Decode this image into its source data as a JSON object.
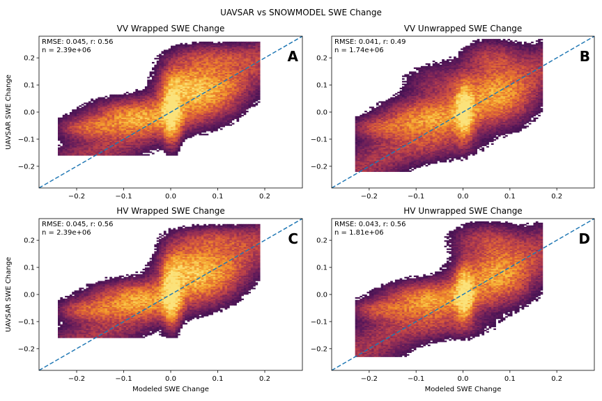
{
  "suptitle": "UAVSAR vs SNOWMODEL SWE Change",
  "colors": {
    "one_to_one_line": "#1f77b4",
    "colormap": [
      "#1a0a2e",
      "#3b0f4f",
      "#5f1a5a",
      "#8a2a56",
      "#b53d4b",
      "#d85b3a",
      "#ef8a2a",
      "#f8bb3c",
      "#fbe27a"
    ]
  },
  "chart_data": [
    {
      "type": "heatmap",
      "panel_letter": "A",
      "title": "VV Wrapped SWE Change",
      "xlabel": "",
      "ylabel": "UAVSAR SWE Change",
      "stats_line1": "RMSE: 0.045, r: 0.56",
      "stats_line2": "n = 2.39e+06",
      "xlim": [
        -0.28,
        0.28
      ],
      "ylim": [
        -0.28,
        0.28
      ],
      "xticks": [
        -0.2,
        -0.1,
        0.0,
        0.1,
        0.2
      ],
      "yticks": [
        -0.2,
        -0.1,
        0.0,
        0.1,
        0.2
      ],
      "xtick_labels": [
        "−0.2",
        "−0.1",
        "0.0",
        "0.1",
        "0.2"
      ],
      "ytick_labels": [
        "−0.2",
        "−0.1",
        "0.0",
        "0.1",
        "0.2"
      ],
      "reference_line": {
        "slope": 1,
        "intercept": 0,
        "style": "dashed"
      },
      "density_clusters": [
        {
          "x": 0.0,
          "y": 0.0,
          "sx": 0.012,
          "sy": 0.07,
          "w": 1.0
        },
        {
          "x": -0.08,
          "y": -0.02,
          "sx": 0.06,
          "sy": 0.04,
          "w": 0.55
        },
        {
          "x": 0.07,
          "y": 0.08,
          "sx": 0.05,
          "sy": 0.07,
          "w": 0.5
        },
        {
          "x": -0.18,
          "y": -0.06,
          "sx": 0.04,
          "sy": 0.025,
          "w": 0.35
        },
        {
          "x": 0.09,
          "y": 0.2,
          "sx": 0.06,
          "sy": 0.03,
          "w": 0.25
        },
        {
          "x": 0.02,
          "y": 0.1,
          "sx": 0.03,
          "sy": 0.05,
          "w": 0.35
        }
      ],
      "x_range": [
        -0.24,
        0.19
      ],
      "y_range": [
        -0.16,
        0.26
      ]
    },
    {
      "type": "heatmap",
      "panel_letter": "B",
      "title": "VV Unwrapped SWE Change",
      "xlabel": "",
      "ylabel": "",
      "stats_line1": "RMSE: 0.041, r: 0.49",
      "stats_line2": "n = 1.74e+06",
      "xlim": [
        -0.28,
        0.28
      ],
      "ylim": [
        -0.28,
        0.28
      ],
      "xticks": [
        -0.2,
        -0.1,
        0.0,
        0.1,
        0.2
      ],
      "yticks": [
        -0.2,
        -0.1,
        0.0,
        0.1,
        0.2
      ],
      "xtick_labels": [
        "−0.2",
        "−0.1",
        "0.0",
        "0.1",
        "0.2"
      ],
      "ytick_labels": [
        "−0.2",
        "−0.1",
        "0.0",
        "0.1",
        "0.2"
      ],
      "reference_line": {
        "slope": 1,
        "intercept": 0,
        "style": "dashed"
      },
      "density_clusters": [
        {
          "x": 0.0,
          "y": 0.0,
          "sx": 0.012,
          "sy": 0.06,
          "w": 1.0
        },
        {
          "x": -0.08,
          "y": -0.02,
          "sx": 0.06,
          "sy": 0.04,
          "w": 0.5
        },
        {
          "x": 0.07,
          "y": 0.06,
          "sx": 0.05,
          "sy": 0.07,
          "w": 0.45
        },
        {
          "x": -0.18,
          "y": -0.06,
          "sx": 0.04,
          "sy": 0.025,
          "w": 0.3
        },
        {
          "x": -0.05,
          "y": 0.1,
          "sx": 0.05,
          "sy": 0.05,
          "w": 0.2
        },
        {
          "x": 0.06,
          "y": 0.2,
          "sx": 0.04,
          "sy": 0.04,
          "w": 0.25
        },
        {
          "x": -0.05,
          "y": -0.12,
          "sx": 0.06,
          "sy": 0.04,
          "w": 0.15
        }
      ],
      "x_range": [
        -0.23,
        0.17
      ],
      "y_range": [
        -0.22,
        0.27
      ]
    },
    {
      "type": "heatmap",
      "panel_letter": "C",
      "title": "HV Wrapped SWE Change",
      "xlabel": "",
      "ylabel": "UAVSAR SWE Change",
      "stats_line1": "RMSE: 0.045, r: 0.56",
      "stats_line2": "n = 2.39e+06",
      "xlim": [
        -0.28,
        0.28
      ],
      "ylim": [
        -0.28,
        0.28
      ],
      "xticks": [
        -0.2,
        -0.1,
        0.0,
        0.1,
        0.2
      ],
      "yticks": [
        -0.2,
        -0.1,
        0.0,
        0.1,
        0.2
      ],
      "xtick_labels": [
        "−0.2",
        "−0.1",
        "0.0",
        "0.1",
        "0.2"
      ],
      "ytick_labels": [
        "−0.2",
        "−0.1",
        "0.0",
        "0.1",
        "0.2"
      ],
      "reference_line": {
        "slope": 1,
        "intercept": 0,
        "style": "dashed"
      },
      "density_clusters": [
        {
          "x": 0.0,
          "y": 0.0,
          "sx": 0.012,
          "sy": 0.07,
          "w": 1.0
        },
        {
          "x": -0.08,
          "y": -0.02,
          "sx": 0.06,
          "sy": 0.04,
          "w": 0.55
        },
        {
          "x": 0.07,
          "y": 0.08,
          "sx": 0.05,
          "sy": 0.07,
          "w": 0.5
        },
        {
          "x": -0.18,
          "y": -0.06,
          "sx": 0.04,
          "sy": 0.025,
          "w": 0.35
        },
        {
          "x": 0.09,
          "y": 0.2,
          "sx": 0.06,
          "sy": 0.03,
          "w": 0.25
        },
        {
          "x": 0.02,
          "y": 0.1,
          "sx": 0.03,
          "sy": 0.05,
          "w": 0.35
        }
      ],
      "x_range": [
        -0.24,
        0.19
      ],
      "y_range": [
        -0.16,
        0.26
      ]
    },
    {
      "type": "heatmap",
      "panel_letter": "D",
      "title": "HV Unwrapped SWE Change",
      "xlabel": "Modeled SWE Change",
      "ylabel": "",
      "stats_line1": "RMSE: 0.043, r: 0.56",
      "stats_line2": "n = 1.81e+06",
      "xlim": [
        -0.28,
        0.28
      ],
      "ylim": [
        -0.28,
        0.28
      ],
      "xticks": [
        -0.2,
        -0.1,
        0.0,
        0.1,
        0.2
      ],
      "yticks": [
        -0.2,
        -0.1,
        0.0,
        0.1,
        0.2
      ],
      "xtick_labels": [
        "−0.2",
        "−0.1",
        "0.0",
        "0.1",
        "0.2"
      ],
      "ytick_labels": [
        "−0.2",
        "−0.1",
        "0.0",
        "0.1",
        "0.2"
      ],
      "reference_line": {
        "slope": 1,
        "intercept": 0,
        "style": "dashed"
      },
      "density_clusters": [
        {
          "x": 0.0,
          "y": 0.0,
          "sx": 0.012,
          "sy": 0.06,
          "w": 1.0
        },
        {
          "x": -0.08,
          "y": -0.02,
          "sx": 0.06,
          "sy": 0.04,
          "w": 0.5
        },
        {
          "x": 0.07,
          "y": 0.07,
          "sx": 0.05,
          "sy": 0.07,
          "w": 0.45
        },
        {
          "x": -0.18,
          "y": -0.06,
          "sx": 0.04,
          "sy": 0.025,
          "w": 0.3
        },
        {
          "x": 0.05,
          "y": 0.2,
          "sx": 0.05,
          "sy": 0.04,
          "w": 0.25
        },
        {
          "x": -0.03,
          "y": -0.12,
          "sx": 0.06,
          "sy": 0.03,
          "w": 0.15
        }
      ],
      "x_range": [
        -0.23,
        0.17
      ],
      "y_range": [
        -0.23,
        0.27
      ]
    }
  ],
  "bottom_left_xlabel": "Modeled SWE Change"
}
